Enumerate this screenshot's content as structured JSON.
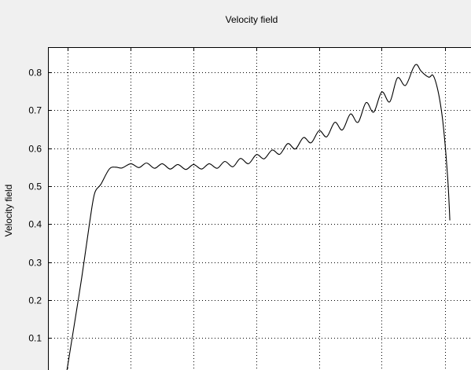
{
  "window": {
    "background": "#f0f0f0",
    "axes_background": "#ffffff",
    "line_color": "#000000",
    "grid_color": "#000000"
  },
  "chart_data": {
    "type": "line",
    "title": "Velocity field",
    "xlabel": "",
    "ylabel": "Velocity field",
    "xlim": [
      0,
      1
    ],
    "ylim": [
      0.016,
      0.866
    ],
    "grid": true,
    "yticks": [
      0.1,
      0.2,
      0.3,
      0.4,
      0.5,
      0.6,
      0.7,
      0.8
    ],
    "ytick_labels": [
      "0.1",
      "0.2",
      "0.3",
      "0.4",
      "0.5",
      "0.6",
      "0.7",
      "0.8"
    ],
    "xgrid": [
      0.047,
      0.196,
      0.344,
      0.493,
      0.641,
      0.789,
      0.938
    ],
    "series": [
      {
        "values": [
          {
            "x": 0.045,
            "y": 0.016
          },
          {
            "x": 0.06,
            "y": 0.12
          },
          {
            "x": 0.08,
            "y": 0.26
          },
          {
            "x": 0.098,
            "y": 0.4
          },
          {
            "x": 0.11,
            "y": 0.48
          },
          {
            "x": 0.125,
            "y": 0.505
          },
          {
            "x": 0.145,
            "y": 0.545
          },
          {
            "x": 0.16,
            "y": 0.55
          },
          {
            "x": 0.175,
            "y": 0.548
          },
          {
            "x": 0.196,
            "y": 0.559
          },
          {
            "x": 0.215,
            "y": 0.549
          },
          {
            "x": 0.233,
            "y": 0.561
          },
          {
            "x": 0.252,
            "y": 0.547
          },
          {
            "x": 0.27,
            "y": 0.559
          },
          {
            "x": 0.289,
            "y": 0.545
          },
          {
            "x": 0.307,
            "y": 0.557
          },
          {
            "x": 0.326,
            "y": 0.544
          },
          {
            "x": 0.344,
            "y": 0.557
          },
          {
            "x": 0.363,
            "y": 0.545
          },
          {
            "x": 0.381,
            "y": 0.559
          },
          {
            "x": 0.4,
            "y": 0.547
          },
          {
            "x": 0.418,
            "y": 0.565
          },
          {
            "x": 0.437,
            "y": 0.551
          },
          {
            "x": 0.455,
            "y": 0.573
          },
          {
            "x": 0.474,
            "y": 0.559
          },
          {
            "x": 0.493,
            "y": 0.583
          },
          {
            "x": 0.511,
            "y": 0.572
          },
          {
            "x": 0.53,
            "y": 0.595
          },
          {
            "x": 0.548,
            "y": 0.584
          },
          {
            "x": 0.567,
            "y": 0.612
          },
          {
            "x": 0.585,
            "y": 0.598
          },
          {
            "x": 0.604,
            "y": 0.628
          },
          {
            "x": 0.622,
            "y": 0.614
          },
          {
            "x": 0.641,
            "y": 0.646
          },
          {
            "x": 0.659,
            "y": 0.63
          },
          {
            "x": 0.678,
            "y": 0.668
          },
          {
            "x": 0.696,
            "y": 0.648
          },
          {
            "x": 0.715,
            "y": 0.69
          },
          {
            "x": 0.733,
            "y": 0.668
          },
          {
            "x": 0.752,
            "y": 0.72
          },
          {
            "x": 0.77,
            "y": 0.695
          },
          {
            "x": 0.789,
            "y": 0.748
          },
          {
            "x": 0.808,
            "y": 0.722
          },
          {
            "x": 0.826,
            "y": 0.785
          },
          {
            "x": 0.845,
            "y": 0.765
          },
          {
            "x": 0.863,
            "y": 0.81
          },
          {
            "x": 0.872,
            "y": 0.82
          },
          {
            "x": 0.882,
            "y": 0.803
          },
          {
            "x": 0.9,
            "y": 0.787
          },
          {
            "x": 0.91,
            "y": 0.792
          },
          {
            "x": 0.92,
            "y": 0.76
          },
          {
            "x": 0.93,
            "y": 0.7
          },
          {
            "x": 0.938,
            "y": 0.62
          },
          {
            "x": 0.945,
            "y": 0.52
          },
          {
            "x": 0.948,
            "y": 0.46
          },
          {
            "x": 0.95,
            "y": 0.41
          }
        ]
      }
    ]
  }
}
